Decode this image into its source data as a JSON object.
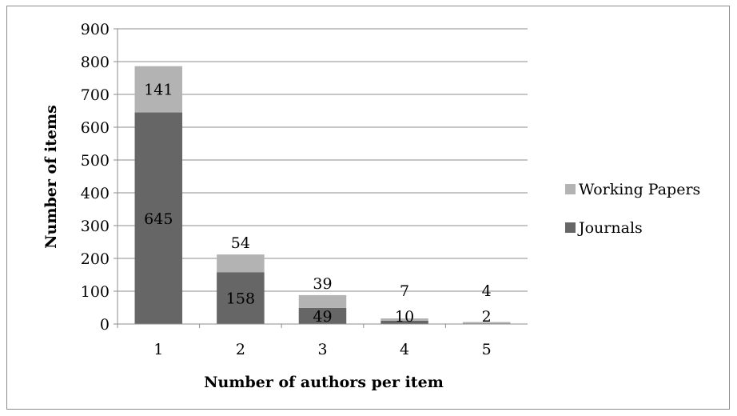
{
  "chart_data": {
    "type": "bar",
    "stacked": true,
    "categories": [
      "1",
      "2",
      "3",
      "4",
      "5"
    ],
    "series": [
      {
        "name": "Journals",
        "values": [
          645,
          158,
          49,
          10,
          2
        ],
        "color": "#666666"
      },
      {
        "name": "Working Papers",
        "values": [
          141,
          54,
          39,
          7,
          4
        ],
        "color": "#b3b3b3"
      }
    ],
    "xlabel": "Number of authors per item",
    "ylabel": "Number of items",
    "ylim": [
      0,
      900
    ],
    "yticks": [
      0,
      100,
      200,
      300,
      400,
      500,
      600,
      700,
      800,
      900
    ],
    "grid": true,
    "legend_position": "right"
  }
}
